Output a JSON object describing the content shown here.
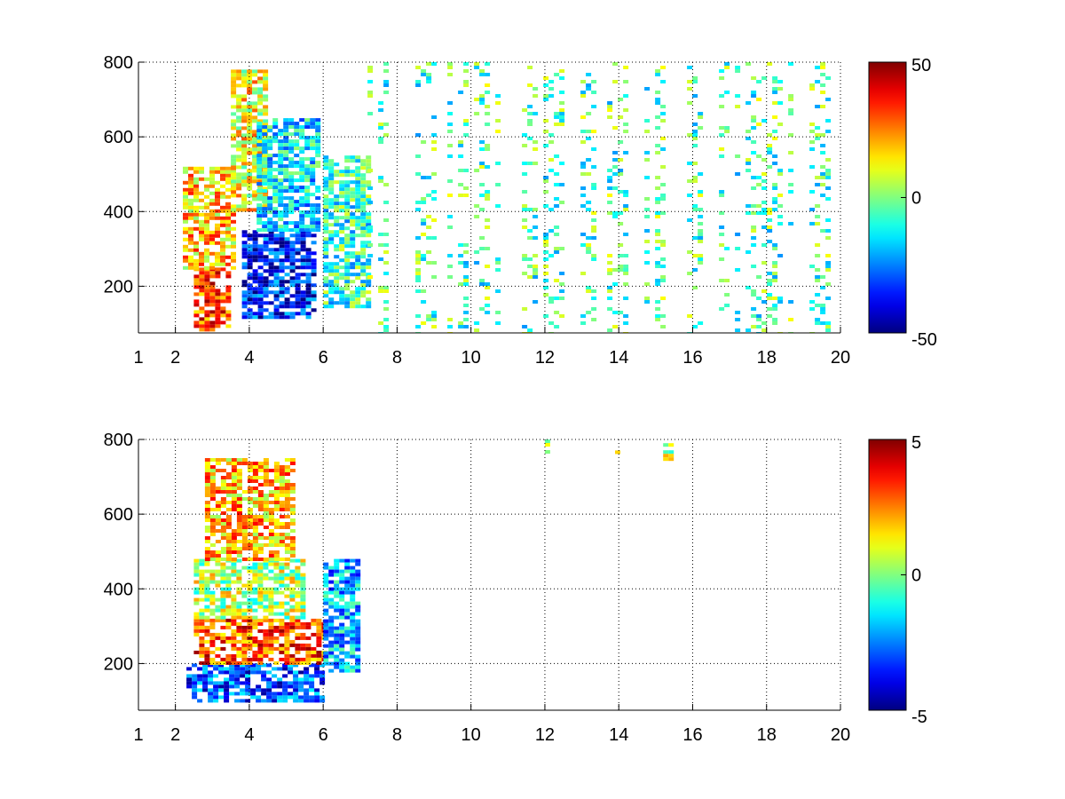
{
  "chart_data": [
    {
      "type": "heatmap",
      "title": "",
      "xlabel": "",
      "ylabel": "",
      "xlim": [
        1,
        20
      ],
      "ylim": [
        75,
        800
      ],
      "xticks": [
        1,
        2,
        4,
        6,
        8,
        10,
        12,
        14,
        16,
        18,
        20
      ],
      "yticks": [
        200,
        400,
        600,
        800
      ],
      "grid": true,
      "colormap": "jet",
      "clim": [
        -50,
        50
      ],
      "colorbar_ticks": [
        50,
        0,
        -50
      ],
      "colorbar_position": "right",
      "regions": [
        {
          "x": [
            2.5,
            3.5
          ],
          "y": [
            80,
            250
          ],
          "value": 30
        },
        {
          "x": [
            2.2,
            3.6
          ],
          "y": [
            250,
            520
          ],
          "value": 18
        },
        {
          "x": [
            3.5,
            4.5
          ],
          "y": [
            400,
            780
          ],
          "value": 12
        },
        {
          "x": [
            3.8,
            5.8
          ],
          "y": [
            120,
            350
          ],
          "value": -35
        },
        {
          "x": [
            4.2,
            5.8
          ],
          "y": [
            350,
            650
          ],
          "value": -15
        },
        {
          "x": [
            6.0,
            7.2
          ],
          "y": [
            150,
            550
          ],
          "value": -8
        },
        {
          "x": [
            7.2,
            20.0
          ],
          "y": [
            75,
            800
          ],
          "value": -5,
          "sparse": true
        }
      ]
    },
    {
      "type": "heatmap",
      "title": "",
      "xlabel": "",
      "ylabel": "",
      "xlim": [
        1,
        20
      ],
      "ylim": [
        75,
        800
      ],
      "xticks": [
        1,
        2,
        4,
        6,
        8,
        10,
        12,
        14,
        16,
        18,
        20
      ],
      "yticks": [
        200,
        400,
        600,
        800
      ],
      "grid": true,
      "colormap": "jet",
      "clim": [
        -5,
        5
      ],
      "colorbar_ticks": [
        5,
        0,
        -5
      ],
      "colorbar_position": "right",
      "regions": [
        {
          "x": [
            2.3,
            6.0
          ],
          "y": [
            100,
            200
          ],
          "value": -3
        },
        {
          "x": [
            2.5,
            6.0
          ],
          "y": [
            200,
            320
          ],
          "value": 3
        },
        {
          "x": [
            2.5,
            5.5
          ],
          "y": [
            320,
            480
          ],
          "value": 0.5
        },
        {
          "x": [
            2.8,
            5.2
          ],
          "y": [
            480,
            750
          ],
          "value": 2
        },
        {
          "x": [
            6.0,
            7.0
          ],
          "y": [
            180,
            480
          ],
          "value": -2
        },
        {
          "x": [
            12.0,
            12.1
          ],
          "y": [
            760,
            800
          ],
          "value": 1
        },
        {
          "x": [
            13.9,
            14.0
          ],
          "y": [
            770,
            780
          ],
          "value": 3
        },
        {
          "x": [
            15.2,
            15.35
          ],
          "y": [
            750,
            790
          ],
          "value": 0.5
        }
      ]
    }
  ]
}
